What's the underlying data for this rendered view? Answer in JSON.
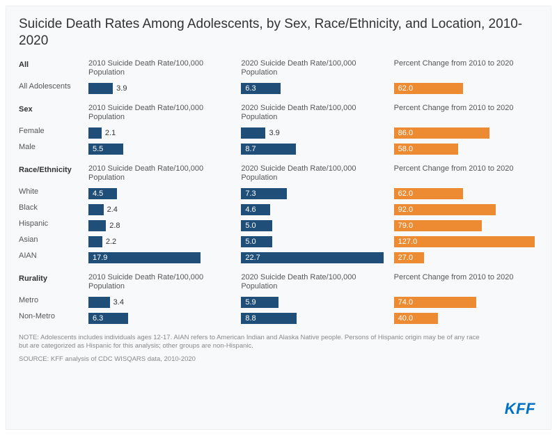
{
  "title": "Suicide Death Rates Among Adolescents, by Sex, Race/Ethnicity, and Location, 2010-2020",
  "columns": {
    "c2010": "2010 Suicide Death Rate/100,000 Population",
    "c2020": "2020 Suicide Death Rate/100,000 Population",
    "pct": "Percent Change from 2010 to 2020"
  },
  "scales": {
    "rate_max": 23,
    "pct_max": 130
  },
  "colors": {
    "rate_bar": "#1f4e79",
    "pct_bar": "#ed8b33",
    "background": "#f8f9fa",
    "text": "#555555"
  },
  "sections": [
    {
      "name": "All",
      "rows": [
        {
          "label": "All Adolescents",
          "r2010": 3.9,
          "r2020": 6.3,
          "pct": 62.0
        }
      ]
    },
    {
      "name": "Sex",
      "rows": [
        {
          "label": "Female",
          "r2010": 2.1,
          "r2020": 3.9,
          "pct": 86.0
        },
        {
          "label": "Male",
          "r2010": 5.5,
          "r2020": 8.7,
          "pct": 58.0
        }
      ]
    },
    {
      "name": "Race/Ethnicity",
      "rows": [
        {
          "label": "White",
          "r2010": 4.5,
          "r2020": 7.3,
          "pct": 62.0
        },
        {
          "label": "Black",
          "r2010": 2.4,
          "r2020": 4.6,
          "pct": 92.0
        },
        {
          "label": "Hispanic",
          "r2010": 2.8,
          "r2020": 5.0,
          "pct": 79.0
        },
        {
          "label": "Asian",
          "r2010": 2.2,
          "r2020": 5.0,
          "pct": 127.0
        },
        {
          "label": "AIAN",
          "r2010": 17.9,
          "r2020": 22.7,
          "pct": 27.0
        }
      ]
    },
    {
      "name": "Rurality",
      "rows": [
        {
          "label": "Metro",
          "r2010": 3.4,
          "r2020": 5.9,
          "pct": 74.0
        },
        {
          "label": "Non-Metro",
          "r2010": 6.3,
          "r2020": 8.8,
          "pct": 40.0
        }
      ]
    }
  ],
  "note": "NOTE: Adolescents includes individuals ages 12-17. AIAN refers to American Indian and Alaska Native people. Persons of Hispanic origin may be of any race but are categorized as Hispanic for this analysis; other groups are non-Hispanic.",
  "source": "SOURCE: KFF analysis of CDC WISQARS data, 2010-2020",
  "logo": "KFF"
}
